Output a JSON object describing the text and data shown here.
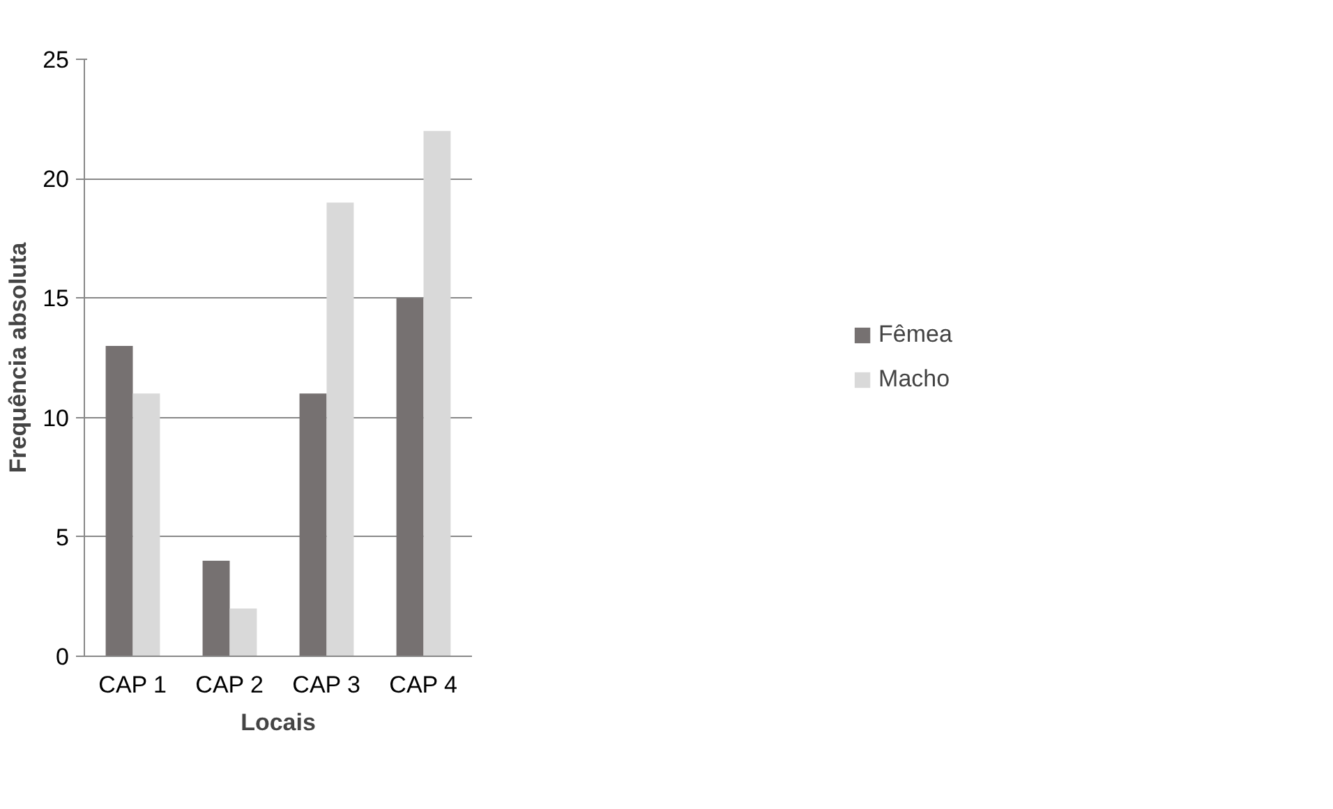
{
  "chart_data": {
    "type": "bar",
    "xlabel": "Locais",
    "ylabel": "Frequência absoluta",
    "categories": [
      "CAP 1",
      "CAP 2",
      "CAP 3",
      "CAP 4"
    ],
    "series": [
      {
        "name": "Fêmea",
        "color": "#767171",
        "values": [
          13,
          4,
          11,
          15
        ]
      },
      {
        "name": "Macho",
        "color": "#d9d9d9",
        "values": [
          11,
          2,
          19,
          22
        ]
      }
    ],
    "ylim": [
      0,
      25
    ],
    "yticks": [
      0,
      5,
      10,
      15,
      20,
      25
    ],
    "grid": "y",
    "legend": "right"
  }
}
